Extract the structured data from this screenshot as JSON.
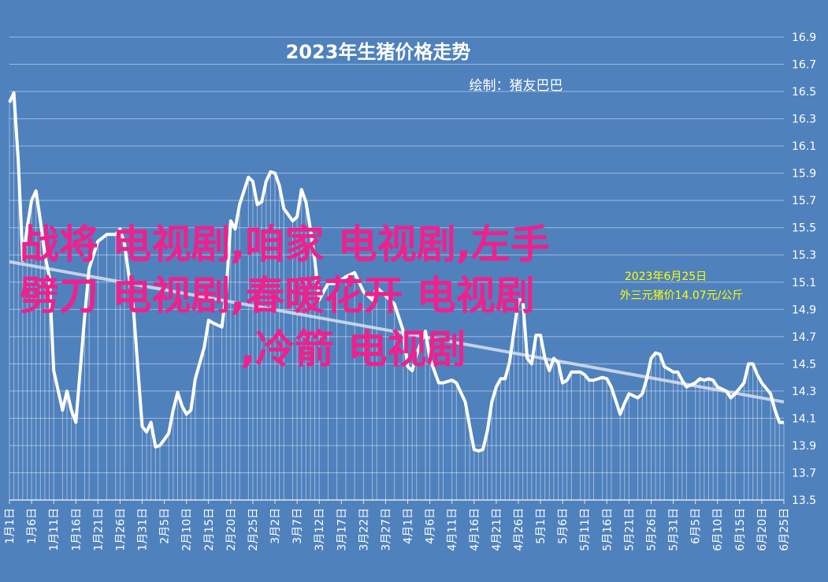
{
  "chart_data": {
    "type": "line",
    "title": "2023年生猪价格走势",
    "subtitle": "绘制：猪友巴巴",
    "annotation": [
      "2023年6月25日",
      "外三元猪价14.07元/公斤"
    ],
    "x": [
      "1月1日",
      "1月2日",
      "1月3日",
      "1月4日",
      "1月5日",
      "1月6日",
      "1月7日",
      "1月8日",
      "1月9日",
      "1月10日",
      "1月11日",
      "1月13日",
      "1月14日",
      "1月15日",
      "1月16日",
      "1月18日",
      "1月19日",
      "1月21日",
      "1月23日",
      "1月25日",
      "1月26日",
      "1月27日",
      "1月29日",
      "1月31日",
      "2月1日",
      "2月2日",
      "2月3日",
      "2月4日",
      "2月6日",
      "2月7日",
      "2月8日",
      "2月9日",
      "2月10日",
      "2月11日",
      "2月12日",
      "2月14日",
      "2月15日",
      "2月16日",
      "2月18日",
      "2月19日",
      "2月20日",
      "2月21日",
      "2月22日",
      "2月24日",
      "2月25日",
      "2月26日",
      "2月27日",
      "2月28日",
      "3月1日",
      "3月2日",
      "3月3日",
      "3月4日",
      "3月6日",
      "3月7日",
      "3月8日",
      "3月9日",
      "3月10日",
      "3月11日",
      "3月12日",
      "3月14日",
      "3月16日",
      "3月18日",
      "3月20日",
      "3月22日",
      "3月24日",
      "3月25日",
      "3月27日",
      "3月29日",
      "3月31日",
      "4月1日",
      "4月2日",
      "4月3日",
      "4月5日",
      "4月6日",
      "4月8日",
      "4月9日",
      "4月11日",
      "4月12日",
      "4月14日",
      "4月15日",
      "4月16日",
      "4月17日",
      "4月18日",
      "4月19日",
      "4月20日",
      "4月21日",
      "4月22日",
      "4月23日",
      "4月24日",
      "4月25日",
      "4月26日",
      "4月27日",
      "4月28日",
      "4月29日",
      "4月30日",
      "5月1日",
      "5月2日",
      "5月3日",
      "5月4日",
      "5月5日",
      "5月6日",
      "5月7日",
      "5月8日",
      "5月10日",
      "5月11日",
      "5月12日",
      "5月13日",
      "5月15日",
      "5月16日",
      "5月17日",
      "5月19日",
      "5月20日",
      "5月21日",
      "5月23日",
      "5月24日",
      "5月25日",
      "5月26日",
      "5月27日",
      "5月28日",
      "5月29日",
      "5月31日",
      "6月1日",
      "6月2日",
      "6月3日",
      "6月5日",
      "6月6日",
      "6月7日",
      "6月8日",
      "6月9日",
      "6月10日",
      "6月12日",
      "6月13日",
      "6月14日",
      "6月16日",
      "6月17日",
      "6月18日",
      "6月19日",
      "6月20日",
      "6月22日",
      "6月23日",
      "6月24日",
      "6月25日"
    ],
    "values": [
      16.42,
      16.49,
      15.99,
      15.26,
      15.5,
      15.7,
      15.77,
      15.55,
      15.3,
      15.14,
      14.45,
      14.16,
      14.3,
      14.16,
      14.07,
      14.85,
      15.2,
      15.4,
      15.45,
      15.45,
      15.49,
      15.38,
      14.91,
      14.04,
      14.0,
      14.07,
      13.89,
      13.9,
      13.99,
      14.16,
      14.29,
      14.19,
      14.13,
      14.16,
      14.39,
      14.62,
      14.82,
      14.8,
      14.77,
      15.03,
      15.55,
      15.49,
      15.67,
      15.87,
      15.84,
      15.67,
      15.69,
      15.84,
      15.91,
      15.9,
      15.81,
      15.64,
      15.55,
      15.58,
      15.78,
      15.69,
      15.49,
      15.26,
      14.97,
      15.09,
      15.09,
      15.14,
      15.17,
      15.03,
      14.97,
      15.06,
      15.0,
      14.94,
      14.74,
      14.48,
      14.45,
      14.57,
      14.74,
      14.54,
      14.36,
      14.36,
      14.38,
      14.36,
      14.22,
      14.04,
      13.87,
      13.86,
      13.87,
      14.01,
      14.22,
      14.33,
      14.39,
      14.39,
      14.51,
      14.74,
      14.97,
      14.97,
      14.54,
      14.5,
      14.71,
      14.71,
      14.54,
      14.45,
      14.54,
      14.51,
      14.36,
      14.38,
      14.44,
      14.44,
      14.42,
      14.38,
      14.38,
      14.4,
      14.39,
      14.33,
      14.13,
      14.21,
      14.28,
      14.25,
      14.28,
      14.39,
      14.54,
      14.58,
      14.57,
      14.48,
      14.44,
      14.44,
      14.38,
      14.33,
      14.36,
      14.39,
      14.38,
      14.39,
      14.38,
      14.33,
      14.3,
      14.25,
      14.28,
      14.36,
      14.5,
      14.5,
      14.42,
      14.36,
      14.28,
      14.16,
      14.07,
      14.07
    ],
    "trend": [
      15.25,
      14.22
    ],
    "xticks": [
      "1月1日",
      "1月6日",
      "1月11日",
      "1月16日",
      "1月21日",
      "1月26日",
      "1月31日",
      "2月5日",
      "2月10日",
      "2月15日",
      "2月20日",
      "2月25日",
      "3月2日",
      "3月7日",
      "3月12日",
      "3月17日",
      "3月22日",
      "3月27日",
      "4月1日",
      "4月6日",
      "4月11日",
      "4月16日",
      "4月21日",
      "4月26日",
      "5月1日",
      "5月6日",
      "5月11日",
      "5月16日",
      "5月21日",
      "5月26日",
      "5月31日",
      "6月5日",
      "6月10日",
      "6月15日",
      "6月20日",
      "6月25日"
    ],
    "ylim": [
      13.5,
      16.9
    ],
    "yticks": [
      13.5,
      13.7,
      13.9,
      14.1,
      14.3,
      14.5,
      14.7,
      14.9,
      15.1,
      15.3,
      15.5,
      15.7,
      15.9,
      16.1,
      16.3,
      16.5,
      16.7,
      16.9
    ],
    "grid": true,
    "color": "#ffffff"
  },
  "overlay_text": [
    "战将 电视剧,咱家 电视剧,左手",
    "劈刀 电视剧,春暖花开 电视剧",
    ",冷箭 电视剧"
  ]
}
